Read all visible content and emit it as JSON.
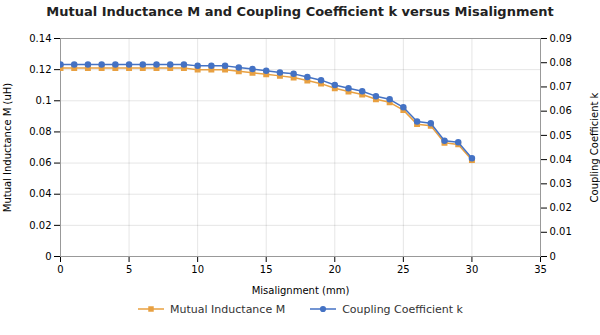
{
  "chart_data": {
    "type": "line",
    "title": "Mutual Inductance M and Coupling Coefficient k versus Misalignment",
    "xlabel": "Misalignment (mm)",
    "ylabel": "Mutual Inductance M (uH)",
    "y2label": "Coupling Coefficient k",
    "x": [
      0,
      1,
      2,
      3,
      4,
      5,
      6,
      7,
      8,
      9,
      10,
      11,
      12,
      13,
      14,
      15,
      16,
      17,
      18,
      19,
      20,
      21,
      22,
      23,
      24,
      25,
      26,
      27,
      28,
      29,
      30
    ],
    "series": [
      {
        "name": "Mutual Inductance M",
        "color": "#E8A041",
        "marker": "square",
        "values": [
          0.121,
          0.121,
          0.121,
          0.121,
          0.121,
          0.121,
          0.121,
          0.121,
          0.121,
          0.121,
          0.12,
          0.12,
          0.12,
          0.119,
          0.118,
          0.117,
          0.116,
          0.115,
          0.113,
          0.111,
          0.108,
          0.106,
          0.104,
          0.101,
          0.099,
          0.094,
          0.085,
          0.084,
          0.073,
          0.072,
          0.062
        ]
      },
      {
        "name": "Coupling Coefficient k",
        "color": "#4472C4",
        "marker": "circle",
        "axis": "y2",
        "values": [
          0.0793,
          0.0793,
          0.0793,
          0.0793,
          0.0793,
          0.0793,
          0.0793,
          0.0793,
          0.0793,
          0.0793,
          0.0787,
          0.0787,
          0.0787,
          0.078,
          0.0774,
          0.0767,
          0.076,
          0.0754,
          0.0741,
          0.0728,
          0.0708,
          0.0695,
          0.0682,
          0.0662,
          0.0649,
          0.0616,
          0.0557,
          0.055,
          0.0478,
          0.0472,
          0.0406
        ]
      }
    ],
    "xlim": [
      0,
      35
    ],
    "xticks": [
      0,
      5,
      10,
      15,
      20,
      25,
      30,
      35
    ],
    "ylim": [
      0,
      0.14
    ],
    "yticks": [
      0,
      0.02,
      0.04,
      0.06,
      0.08,
      0.1,
      0.12,
      0.14
    ],
    "y2lim": [
      0,
      0.09
    ],
    "y2ticks": [
      0,
      0.01,
      0.02,
      0.03,
      0.04,
      0.05,
      0.06,
      0.07,
      0.08,
      0.09
    ],
    "grid": true,
    "legend": "bottom"
  }
}
